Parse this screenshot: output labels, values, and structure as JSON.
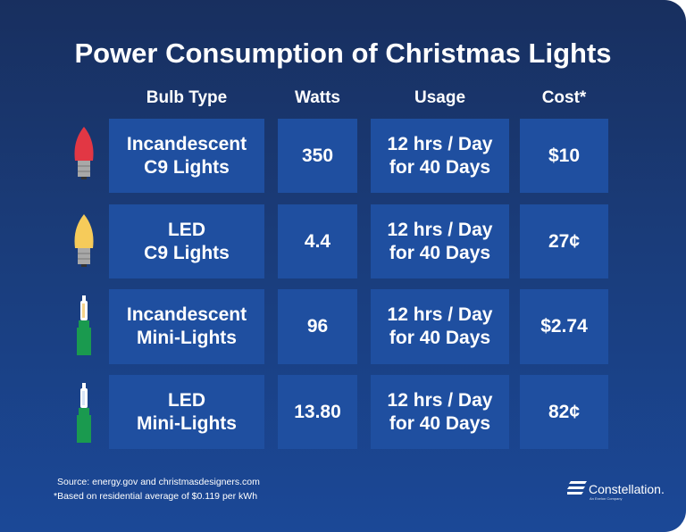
{
  "title": "Power Consumption of Christmas Lights",
  "headers": [
    "Bulb Type",
    "Watts",
    "Usage",
    "Cost*"
  ],
  "rows": [
    {
      "bulb_icon": "red-c9-bulb",
      "type": "Incandescent\nC9 Lights",
      "watts": "350",
      "usage": "12 hrs / Day\nfor 40 Days",
      "cost": "$10"
    },
    {
      "bulb_icon": "yellow-c9-bulb",
      "type": "LED\nC9 Lights",
      "watts": "4.4",
      "usage": "12 hrs / Day\nfor 40 Days",
      "cost": "27¢"
    },
    {
      "bulb_icon": "warm-mini-light",
      "type": "Incandescent\nMini-Lights",
      "watts": "96",
      "usage": "12 hrs / Day\nfor 40 Days",
      "cost": "$2.74"
    },
    {
      "bulb_icon": "cool-mini-light",
      "type": "LED\nMini-Lights",
      "watts": "13.80",
      "usage": "12 hrs / Day\nfor 40 Days",
      "cost": "82¢"
    }
  ],
  "footer": {
    "source": "Source: energy.gov and christmasdesigners.com",
    "note": "*Based on residential average of $0.119 per kWh"
  },
  "logo": {
    "name": "Constellation.",
    "tagline": "An Exelon Company"
  },
  "colors": {
    "background_top": "#182f5f",
    "background_bottom": "#1b4897",
    "cell": "#1f4fa0",
    "red_bulb": "#e23744",
    "yellow_bulb": "#f6cb5a",
    "mini_base": "#1a9a4f"
  }
}
